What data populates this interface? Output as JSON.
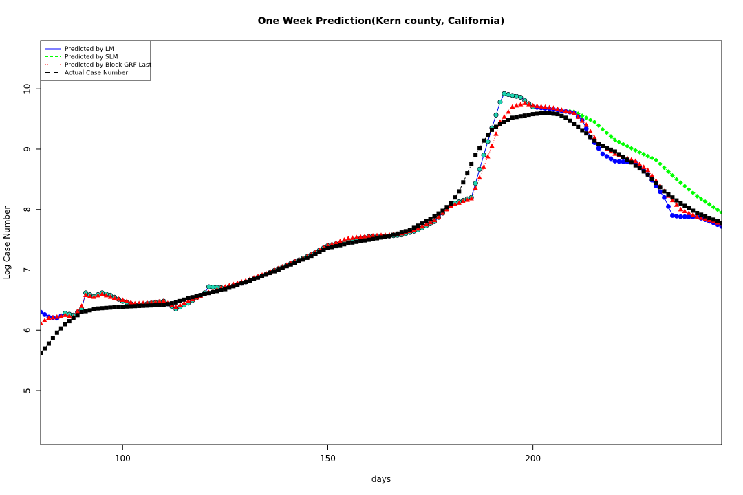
{
  "chart_data": {
    "type": "scatter",
    "title": "One Week Prediction(Kern county, California)",
    "xlabel": "days",
    "ylabel": "Log Case Number",
    "xlim": [
      80,
      246
    ],
    "ylim": [
      4.1,
      10.8
    ],
    "xticks": [
      100,
      150,
      200
    ],
    "yticks": [
      5,
      6,
      7,
      8,
      9,
      10
    ],
    "grid": false,
    "legend_position": "top-left",
    "legend": [
      {
        "label": "Predicted by LM",
        "color": "#0000ff",
        "line": "solid",
        "marker": "circle"
      },
      {
        "label": "Predicted by SLM",
        "color": "#00ff00",
        "line": "dashed",
        "marker": "diamond"
      },
      {
        "label": "Predicted by Block GRF Last",
        "color": "#ff0000",
        "line": "dotted",
        "marker": "triangle"
      },
      {
        "label": "Actual Case Number",
        "color": "#000000",
        "line": "dashdot",
        "marker": "square"
      }
    ],
    "x_start": 80,
    "x_end": 246,
    "actual_knots": [
      [
        80,
        5.62
      ],
      [
        82,
        5.78
      ],
      [
        84,
        5.96
      ],
      [
        86,
        6.1
      ],
      [
        88,
        6.2
      ],
      [
        90,
        6.3
      ],
      [
        94,
        6.36
      ],
      [
        100,
        6.39
      ],
      [
        110,
        6.42
      ],
      [
        113,
        6.46
      ],
      [
        116,
        6.53
      ],
      [
        120,
        6.6
      ],
      [
        125,
        6.68
      ],
      [
        130,
        6.8
      ],
      [
        135,
        6.92
      ],
      [
        140,
        7.06
      ],
      [
        145,
        7.2
      ],
      [
        150,
        7.36
      ],
      [
        155,
        7.44
      ],
      [
        160,
        7.5
      ],
      [
        165,
        7.56
      ],
      [
        170,
        7.66
      ],
      [
        175,
        7.84
      ],
      [
        178,
        7.98
      ],
      [
        180,
        8.1
      ],
      [
        182,
        8.3
      ],
      [
        184,
        8.6
      ],
      [
        186,
        8.9
      ],
      [
        188,
        9.14
      ],
      [
        190,
        9.32
      ],
      [
        192,
        9.42
      ],
      [
        195,
        9.52
      ],
      [
        200,
        9.58
      ],
      [
        203,
        9.6
      ],
      [
        206,
        9.58
      ],
      [
        208,
        9.52
      ],
      [
        210,
        9.42
      ],
      [
        213,
        9.26
      ],
      [
        216,
        9.08
      ],
      [
        220,
        8.96
      ],
      [
        224,
        8.78
      ],
      [
        228,
        8.58
      ],
      [
        232,
        8.3
      ],
      [
        236,
        8.1
      ],
      [
        240,
        7.94
      ],
      [
        246,
        7.78
      ]
    ],
    "lm_knots": [
      [
        80,
        6.3
      ],
      [
        82,
        6.22
      ],
      [
        84,
        6.2
      ],
      [
        86,
        6.28
      ],
      [
        88,
        6.25
      ],
      [
        90,
        6.35
      ],
      [
        91,
        6.62
      ],
      [
        93,
        6.56
      ],
      [
        95,
        6.62
      ],
      [
        97,
        6.58
      ],
      [
        100,
        6.48
      ],
      [
        103,
        6.42
      ],
      [
        106,
        6.44
      ],
      [
        110,
        6.48
      ],
      [
        113,
        6.35
      ],
      [
        116,
        6.45
      ],
      [
        120,
        6.62
      ],
      [
        121,
        6.72
      ],
      [
        125,
        6.7
      ],
      [
        130,
        6.8
      ],
      [
        135,
        6.93
      ],
      [
        140,
        7.08
      ],
      [
        145,
        7.22
      ],
      [
        150,
        7.4
      ],
      [
        155,
        7.48
      ],
      [
        160,
        7.55
      ],
      [
        165,
        7.56
      ],
      [
        168,
        7.58
      ],
      [
        172,
        7.66
      ],
      [
        176,
        7.8
      ],
      [
        180,
        8.08
      ],
      [
        185,
        8.2
      ],
      [
        188,
        8.9
      ],
      [
        190,
        9.35
      ],
      [
        192,
        9.78
      ],
      [
        193,
        9.92
      ],
      [
        197,
        9.86
      ],
      [
        200,
        9.7
      ],
      [
        205,
        9.66
      ],
      [
        210,
        9.6
      ],
      [
        212,
        9.48
      ],
      [
        214,
        9.2
      ],
      [
        217,
        8.92
      ],
      [
        220,
        8.8
      ],
      [
        225,
        8.78
      ],
      [
        228,
        8.58
      ],
      [
        232,
        8.2
      ],
      [
        234,
        7.9
      ],
      [
        236,
        7.88
      ],
      [
        240,
        7.88
      ],
      [
        244,
        7.78
      ],
      [
        246,
        7.72
      ]
    ],
    "slm_knots": [
      [
        80,
        6.3
      ],
      [
        82,
        6.22
      ],
      [
        84,
        6.2
      ],
      [
        86,
        6.28
      ],
      [
        88,
        6.25
      ],
      [
        90,
        6.35
      ],
      [
        91,
        6.62
      ],
      [
        93,
        6.56
      ],
      [
        95,
        6.62
      ],
      [
        97,
        6.58
      ],
      [
        100,
        6.48
      ],
      [
        103,
        6.42
      ],
      [
        106,
        6.44
      ],
      [
        110,
        6.48
      ],
      [
        113,
        6.35
      ],
      [
        116,
        6.45
      ],
      [
        120,
        6.62
      ],
      [
        121,
        6.72
      ],
      [
        125,
        6.7
      ],
      [
        130,
        6.8
      ],
      [
        135,
        6.93
      ],
      [
        140,
        7.08
      ],
      [
        145,
        7.22
      ],
      [
        150,
        7.4
      ],
      [
        155,
        7.48
      ],
      [
        160,
        7.55
      ],
      [
        165,
        7.56
      ],
      [
        168,
        7.58
      ],
      [
        172,
        7.66
      ],
      [
        176,
        7.8
      ],
      [
        180,
        8.08
      ],
      [
        185,
        8.2
      ],
      [
        188,
        8.9
      ],
      [
        190,
        9.35
      ],
      [
        192,
        9.78
      ],
      [
        193,
        9.92
      ],
      [
        197,
        9.86
      ],
      [
        200,
        9.7
      ],
      [
        205,
        9.66
      ],
      [
        210,
        9.62
      ],
      [
        215,
        9.45
      ],
      [
        220,
        9.15
      ],
      [
        225,
        8.98
      ],
      [
        230,
        8.82
      ],
      [
        235,
        8.5
      ],
      [
        240,
        8.22
      ],
      [
        246,
        7.95
      ]
    ],
    "grf_knots": [
      [
        80,
        6.12
      ],
      [
        82,
        6.2
      ],
      [
        84,
        6.22
      ],
      [
        86,
        6.25
      ],
      [
        88,
        6.22
      ],
      [
        90,
        6.4
      ],
      [
        91,
        6.58
      ],
      [
        93,
        6.55
      ],
      [
        95,
        6.6
      ],
      [
        97,
        6.55
      ],
      [
        100,
        6.5
      ],
      [
        103,
        6.44
      ],
      [
        106,
        6.45
      ],
      [
        110,
        6.48
      ],
      [
        113,
        6.38
      ],
      [
        116,
        6.48
      ],
      [
        120,
        6.6
      ],
      [
        125,
        6.72
      ],
      [
        130,
        6.82
      ],
      [
        135,
        6.94
      ],
      [
        140,
        7.08
      ],
      [
        145,
        7.22
      ],
      [
        150,
        7.4
      ],
      [
        155,
        7.52
      ],
      [
        160,
        7.56
      ],
      [
        165,
        7.58
      ],
      [
        168,
        7.6
      ],
      [
        172,
        7.68
      ],
      [
        176,
        7.82
      ],
      [
        180,
        8.06
      ],
      [
        185,
        8.18
      ],
      [
        188,
        8.7
      ],
      [
        190,
        9.05
      ],
      [
        192,
        9.45
      ],
      [
        195,
        9.7
      ],
      [
        198,
        9.76
      ],
      [
        200,
        9.72
      ],
      [
        205,
        9.68
      ],
      [
        210,
        9.6
      ],
      [
        213,
        9.4
      ],
      [
        216,
        9.08
      ],
      [
        220,
        8.92
      ],
      [
        225,
        8.8
      ],
      [
        228,
        8.65
      ],
      [
        232,
        8.3
      ],
      [
        236,
        8.0
      ],
      [
        240,
        7.88
      ],
      [
        246,
        7.76
      ]
    ]
  }
}
